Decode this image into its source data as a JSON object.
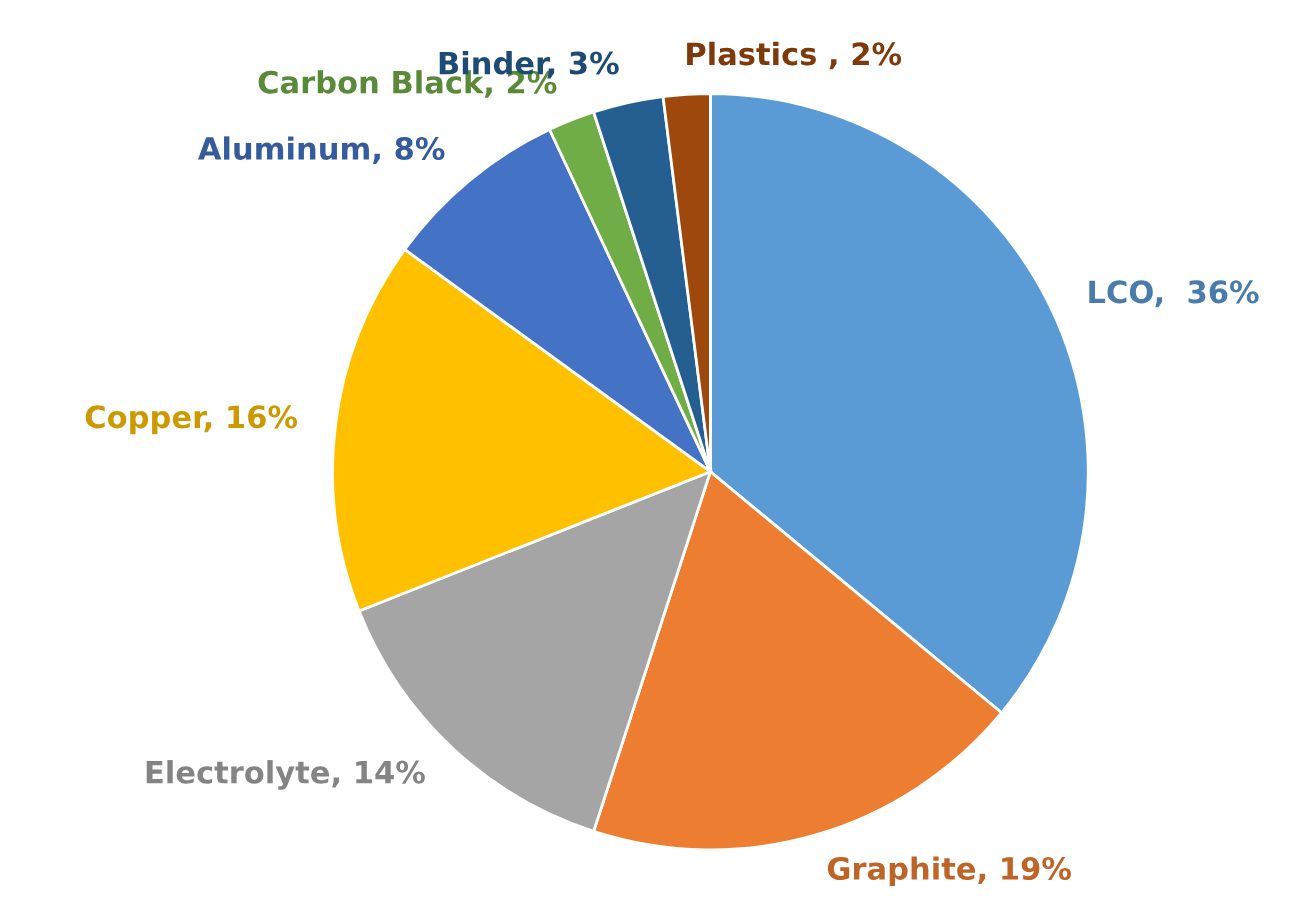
{
  "chart_data": {
    "type": "pie",
    "categories": [
      "LCO,  36%",
      "Graphite, 19%",
      "Electrolyte, 14%",
      "Copper, 16%",
      "Aluminum, 8%",
      "Carbon Black, 2%",
      "Binder, 3%",
      "Plastics , 2%"
    ],
    "values": [
      36,
      19,
      14,
      16,
      8,
      2,
      3,
      2
    ],
    "colors": [
      "#5b9bd5",
      "#ed7d31",
      "#a5a5a5",
      "#ffc000",
      "#4472c4",
      "#70ad47",
      "#255e91",
      "#9e480e"
    ]
  }
}
